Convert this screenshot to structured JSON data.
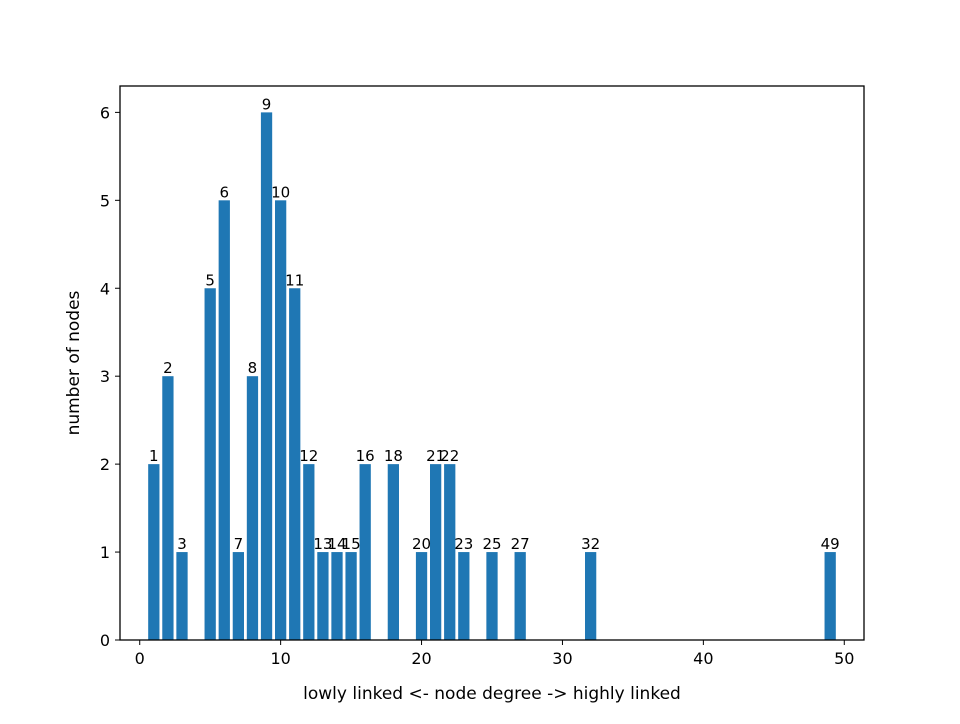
{
  "chart_data": {
    "type": "bar",
    "title": "",
    "xlabel": "lowly linked <- node degree -> highly linked",
    "ylabel": "number of nodes",
    "xlim": [
      -1.4,
      51.4
    ],
    "ylim": [
      0,
      6.3
    ],
    "xticks": [
      0,
      10,
      20,
      30,
      40,
      50
    ],
    "yticks": [
      0,
      1,
      2,
      3,
      4,
      5,
      6
    ],
    "grid": false,
    "bar_color": "#1f77b4",
    "bars": [
      {
        "x": 1,
        "value": 2,
        "label": "1"
      },
      {
        "x": 2,
        "value": 3,
        "label": "2"
      },
      {
        "x": 3,
        "value": 1,
        "label": "3"
      },
      {
        "x": 5,
        "value": 4,
        "label": "5"
      },
      {
        "x": 6,
        "value": 5,
        "label": "6"
      },
      {
        "x": 7,
        "value": 1,
        "label": "7"
      },
      {
        "x": 8,
        "value": 3,
        "label": "8"
      },
      {
        "x": 9,
        "value": 6,
        "label": "9"
      },
      {
        "x": 10,
        "value": 5,
        "label": "10"
      },
      {
        "x": 11,
        "value": 4,
        "label": "11"
      },
      {
        "x": 12,
        "value": 2,
        "label": "12"
      },
      {
        "x": 13,
        "value": 1,
        "label": "13"
      },
      {
        "x": 14,
        "value": 1,
        "label": "14"
      },
      {
        "x": 15,
        "value": 1,
        "label": "15"
      },
      {
        "x": 16,
        "value": 2,
        "label": "16"
      },
      {
        "x": 18,
        "value": 2,
        "label": "18"
      },
      {
        "x": 20,
        "value": 1,
        "label": "20"
      },
      {
        "x": 21,
        "value": 2,
        "label": "21"
      },
      {
        "x": 22,
        "value": 2,
        "label": "22"
      },
      {
        "x": 23,
        "value": 1,
        "label": "23"
      },
      {
        "x": 25,
        "value": 1,
        "label": "25"
      },
      {
        "x": 27,
        "value": 1,
        "label": "27"
      },
      {
        "x": 32,
        "value": 1,
        "label": "32"
      },
      {
        "x": 49,
        "value": 1,
        "label": "49"
      }
    ]
  }
}
